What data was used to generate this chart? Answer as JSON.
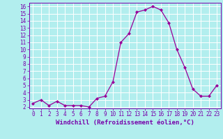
{
  "x": [
    0,
    1,
    2,
    3,
    4,
    5,
    6,
    7,
    8,
    9,
    10,
    11,
    12,
    13,
    14,
    15,
    16,
    17,
    18,
    19,
    20,
    21,
    22,
    23
  ],
  "y": [
    2.5,
    3.0,
    2.2,
    2.8,
    2.2,
    2.2,
    2.2,
    2.0,
    3.2,
    3.5,
    5.5,
    11.0,
    12.2,
    15.2,
    15.5,
    16.0,
    15.5,
    13.7,
    10.0,
    7.5,
    4.5,
    3.5,
    3.5,
    5.0
  ],
  "line_color": "#990099",
  "marker_color": "#990099",
  "bg_color": "#b2eeee",
  "grid_color": "#ffffff",
  "ylabel_ticks": [
    2,
    3,
    4,
    5,
    6,
    7,
    8,
    9,
    10,
    11,
    12,
    13,
    14,
    15,
    16
  ],
  "xlim": [
    -0.5,
    23.5
  ],
  "ylim": [
    1.8,
    16.5
  ],
  "xticks": [
    0,
    1,
    2,
    3,
    4,
    5,
    6,
    7,
    8,
    9,
    10,
    11,
    12,
    13,
    14,
    15,
    16,
    17,
    18,
    19,
    20,
    21,
    22,
    23
  ],
  "xlabel": "Windchill (Refroidissement éolien,°C)",
  "label_color": "#7700aa",
  "tick_color": "#7700aa",
  "font_size": 5.5,
  "xlabel_fontsize": 6.5,
  "lw": 0.9,
  "markersize": 2.0
}
